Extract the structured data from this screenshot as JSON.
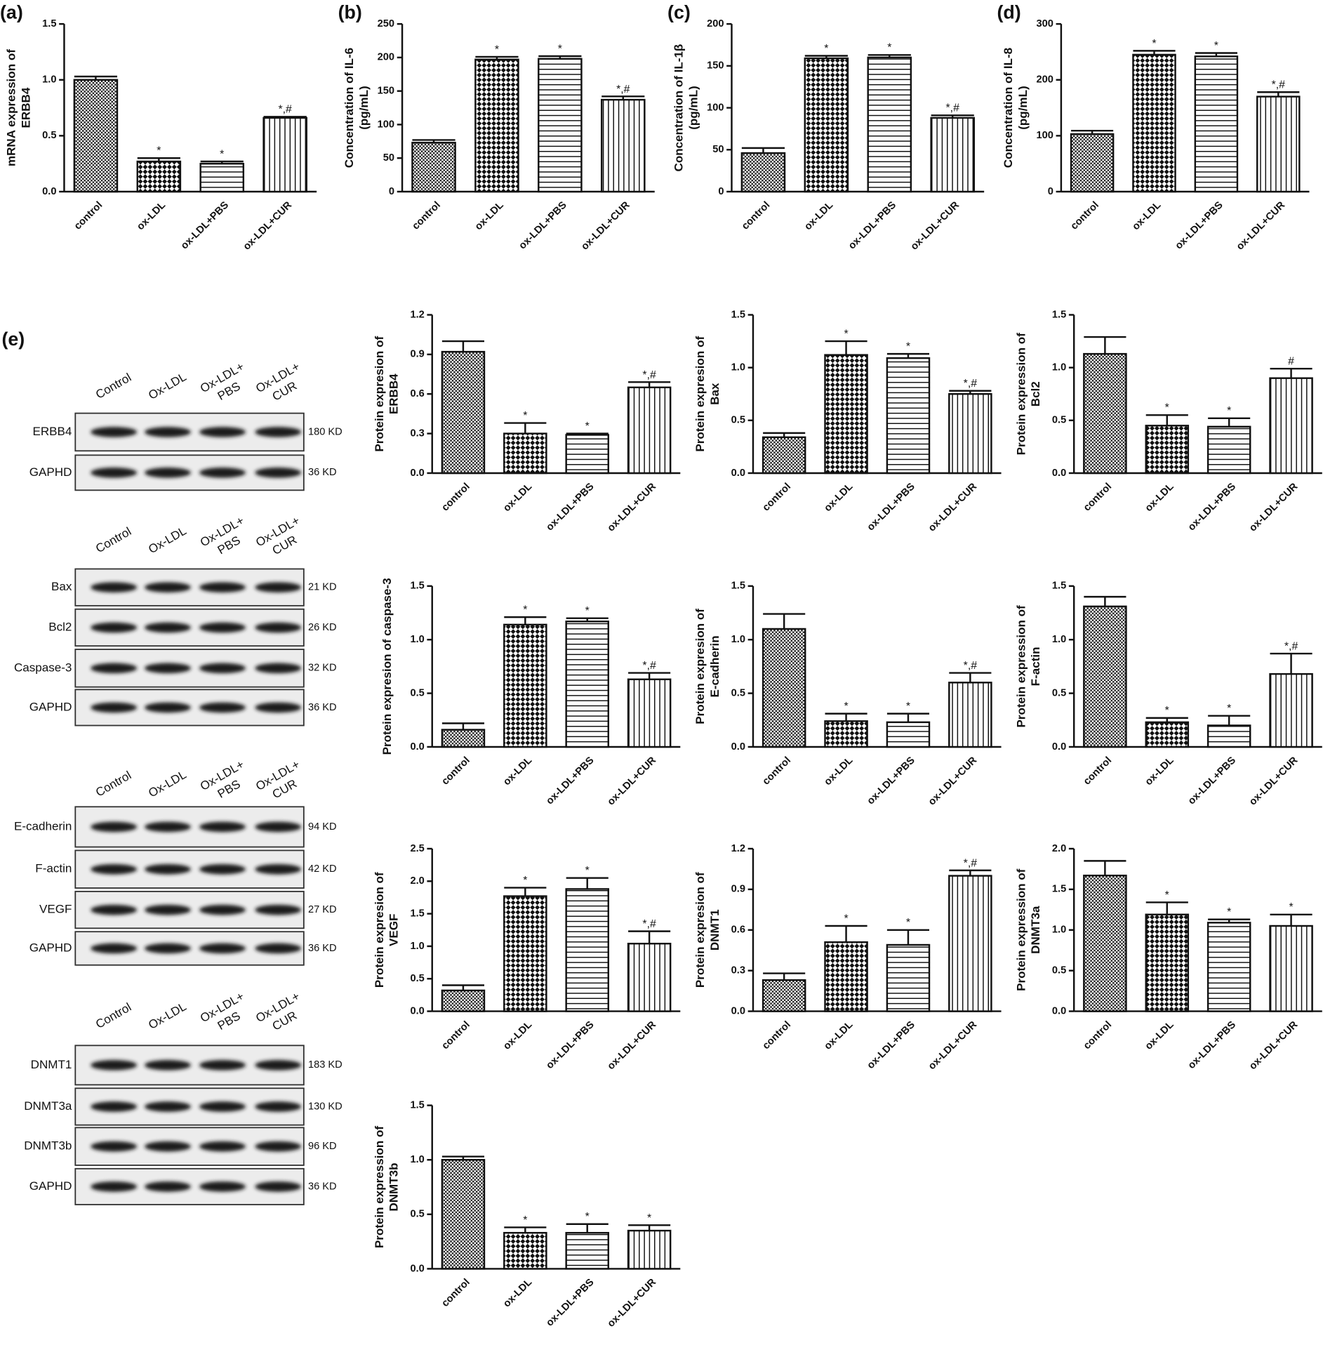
{
  "chart_data": [
    {
      "type": "bar",
      "panel": "(a)",
      "ylabel": [
        "mRNA expression of",
        "ERBB4"
      ],
      "categories": [
        "control",
        "ox-LDL",
        "ox-LDL+PBS",
        "ox-LDL+CUR"
      ],
      "values": [
        1.0,
        0.27,
        0.25,
        0.66
      ],
      "errors": [
        0.03,
        0.03,
        0.02,
        0.01
      ],
      "annotations": [
        null,
        "*",
        "*",
        "*,#"
      ],
      "patterns": [
        "fine-check",
        "check",
        "hlines",
        "vlines"
      ],
      "ylim": [
        0,
        1.5
      ],
      "yticks": [
        {
          "value": 0,
          "label": "0.0"
        },
        0.5,
        {
          "value": 1,
          "label": "1.0"
        },
        1.5
      ]
    },
    {
      "type": "bar",
      "panel": "(b)",
      "ylabel": [
        "Concentration of IL-6",
        "(pg/mL)"
      ],
      "categories": [
        "control",
        "ox-LDL",
        "ox-LDL+PBS",
        "ox-LDL+CUR"
      ],
      "values": [
        73,
        197,
        198,
        137
      ],
      "errors": [
        4,
        4,
        4,
        5
      ],
      "annotations": [
        null,
        "*",
        "*",
        "*,#"
      ],
      "patterns": [
        "fine-check",
        "check",
        "hlines",
        "vlines"
      ],
      "ylim": [
        0,
        250
      ],
      "yticks": [
        0,
        50,
        100,
        150,
        200,
        250
      ]
    },
    {
      "type": "bar",
      "panel": "(c)",
      "ylabel": [
        "Concentration of IL-1β",
        "(pg/mL)"
      ],
      "categories": [
        "control",
        "ox-LDL",
        "ox-LDL+PBS",
        "ox-LDL+CUR"
      ],
      "values": [
        46,
        159,
        160,
        88
      ],
      "errors": [
        6,
        3,
        3,
        3
      ],
      "annotations": [
        null,
        "*",
        "*",
        "*,#"
      ],
      "patterns": [
        "fine-check",
        "check",
        "hlines",
        "vlines"
      ],
      "ylim": [
        0,
        200
      ],
      "yticks": [
        0,
        50,
        100,
        150,
        200
      ]
    },
    {
      "type": "bar",
      "panel": "(d)",
      "ylabel": [
        "Concentration of IL-8",
        "(pg/mL)"
      ],
      "categories": [
        "control",
        "ox-LDL",
        "ox-LDL+PBS",
        "ox-LDL+CUR"
      ],
      "values": [
        103,
        245,
        242,
        170
      ],
      "errors": [
        6,
        7,
        6,
        8
      ],
      "annotations": [
        null,
        "*",
        "*",
        "*,#"
      ],
      "patterns": [
        "fine-check",
        "check",
        "hlines",
        "vlines"
      ],
      "ylim": [
        0,
        300
      ],
      "yticks": [
        0,
        100,
        200,
        300
      ]
    },
    {
      "type": "bar",
      "ylabel": [
        "Protein expresion of",
        "ERBB4"
      ],
      "categories": [
        "control",
        "ox-LDL",
        "ox-LDL+PBS",
        "ox-LDL+CUR"
      ],
      "values": [
        0.92,
        0.3,
        0.29,
        0.65
      ],
      "errors": [
        0.08,
        0.08,
        0.01,
        0.04
      ],
      "annotations": [
        null,
        "*",
        "*",
        "*,#"
      ],
      "patterns": [
        "fine-check",
        "check",
        "hlines",
        "vlines"
      ],
      "ylim": [
        0,
        1.2
      ],
      "yticks": [
        {
          "value": 0,
          "label": "0.0"
        },
        0.3,
        0.6,
        0.9,
        1.2
      ]
    },
    {
      "type": "bar",
      "ylabel": [
        "Protein expresion of",
        "Bax"
      ],
      "categories": [
        "control",
        "ox-LDL",
        "ox-LDL+PBS",
        "ox-LDL+CUR"
      ],
      "values": [
        0.34,
        1.12,
        1.09,
        0.75
      ],
      "errors": [
        0.04,
        0.13,
        0.04,
        0.03
      ],
      "annotations": [
        null,
        "*",
        "*",
        "*,#"
      ],
      "patterns": [
        "fine-check",
        "check",
        "hlines",
        "vlines"
      ],
      "ylim": [
        0,
        1.5
      ],
      "yticks": [
        {
          "value": 0,
          "label": "0.0"
        },
        0.5,
        {
          "value": 1,
          "label": "1.0"
        },
        1.5
      ]
    },
    {
      "type": "bar",
      "ylabel": [
        "Protein expression of",
        "Bcl2"
      ],
      "categories": [
        "control",
        "ox-LDL",
        "ox-LDL+PBS",
        "ox-LDL+CUR"
      ],
      "values": [
        1.13,
        0.45,
        0.44,
        0.9
      ],
      "errors": [
        0.16,
        0.1,
        0.08,
        0.09
      ],
      "annotations": [
        null,
        "*",
        "*",
        "#"
      ],
      "patterns": [
        "fine-check",
        "check",
        "hlines",
        "vlines"
      ],
      "ylim": [
        0,
        1.5
      ],
      "yticks": [
        {
          "value": 0,
          "label": "0.0"
        },
        0.5,
        {
          "value": 1,
          "label": "1.0"
        },
        1.5
      ]
    },
    {
      "type": "bar",
      "ylabel": [
        "Protein expresion of caspase-3"
      ],
      "categories": [
        "control",
        "ox-LDL",
        "ox-LDL+PBS",
        "ox-LDL+CUR"
      ],
      "values": [
        0.16,
        1.14,
        1.17,
        0.63
      ],
      "errors": [
        0.06,
        0.07,
        0.03,
        0.06
      ],
      "annotations": [
        null,
        "*",
        "*",
        "*,#"
      ],
      "patterns": [
        "fine-check",
        "check",
        "hlines",
        "vlines"
      ],
      "ylim": [
        0,
        1.5
      ],
      "yticks": [
        {
          "value": 0,
          "label": "0.0"
        },
        0.5,
        {
          "value": 1,
          "label": "1.0"
        },
        1.5
      ]
    },
    {
      "type": "bar",
      "ylabel": [
        "Protein expresion of",
        "E-cadherin"
      ],
      "categories": [
        "control",
        "ox-LDL",
        "ox-LDL+PBS",
        "ox-LDL+CUR"
      ],
      "values": [
        1.1,
        0.24,
        0.23,
        0.6
      ],
      "errors": [
        0.14,
        0.07,
        0.08,
        0.09
      ],
      "annotations": [
        null,
        "*",
        "*",
        "*,#"
      ],
      "patterns": [
        "fine-check",
        "check",
        "hlines",
        "vlines"
      ],
      "ylim": [
        0,
        1.5
      ],
      "yticks": [
        {
          "value": 0,
          "label": "0.0"
        },
        0.5,
        {
          "value": 1,
          "label": "1.0"
        },
        1.5
      ]
    },
    {
      "type": "bar",
      "ylabel": [
        "Protein expression of",
        "F-actin"
      ],
      "categories": [
        "control",
        "ox-LDL",
        "ox-LDL+PBS",
        "ox-LDL+CUR"
      ],
      "values": [
        1.31,
        0.23,
        0.2,
        0.68
      ],
      "errors": [
        0.09,
        0.04,
        0.09,
        0.19
      ],
      "annotations": [
        null,
        "*",
        "*",
        "*,#"
      ],
      "patterns": [
        "fine-check",
        "check",
        "hlines",
        "vlines"
      ],
      "ylim": [
        0,
        1.5
      ],
      "yticks": [
        {
          "value": 0,
          "label": "0.0"
        },
        0.5,
        {
          "value": 1,
          "label": "1.0"
        },
        1.5
      ]
    },
    {
      "type": "bar",
      "ylabel": [
        "Protein expresion of",
        "VEGF"
      ],
      "categories": [
        "control",
        "ox-LDL",
        "ox-LDL+PBS",
        "ox-LDL+CUR"
      ],
      "values": [
        0.32,
        1.77,
        1.88,
        1.04
      ],
      "errors": [
        0.08,
        0.13,
        0.17,
        0.19
      ],
      "annotations": [
        null,
        "*",
        "*",
        "*,#"
      ],
      "patterns": [
        "fine-check",
        "check",
        "hlines",
        "vlines"
      ],
      "ylim": [
        0,
        2.5
      ],
      "yticks": [
        {
          "value": 0,
          "label": "0.0"
        },
        0.5,
        {
          "value": 1,
          "label": "1.0"
        },
        1.5,
        {
          "value": 2,
          "label": "2.0"
        },
        2.5
      ]
    },
    {
      "type": "bar",
      "ylabel": [
        "Protein expresion of",
        "DNMT1"
      ],
      "categories": [
        "control",
        "ox-LDL",
        "ox-LDL+PBS",
        "ox-LDL+CUR"
      ],
      "values": [
        0.23,
        0.51,
        0.49,
        1.0
      ],
      "errors": [
        0.05,
        0.12,
        0.11,
        0.04
      ],
      "annotations": [
        null,
        "*",
        "*",
        "*,#"
      ],
      "patterns": [
        "fine-check",
        "check",
        "hlines",
        "vlines"
      ],
      "ylim": [
        0,
        1.2
      ],
      "yticks": [
        {
          "value": 0,
          "label": "0.0"
        },
        0.3,
        0.6,
        0.9,
        1.2
      ]
    },
    {
      "type": "bar",
      "ylabel": [
        "Protein expression of",
        "DNMT3a"
      ],
      "categories": [
        "control",
        "ox-LDL",
        "ox-LDL+PBS",
        "ox-LDL+CUR"
      ],
      "values": [
        1.67,
        1.19,
        1.09,
        1.05
      ],
      "errors": [
        0.18,
        0.15,
        0.04,
        0.14
      ],
      "annotations": [
        null,
        "*",
        "*",
        "*"
      ],
      "patterns": [
        "fine-check",
        "check",
        "hlines",
        "vlines"
      ],
      "ylim": [
        0,
        2
      ],
      "yticks": [
        {
          "value": 0,
          "label": "0.0"
        },
        0.5,
        {
          "value": 1,
          "label": "1.0"
        },
        1.5,
        {
          "value": 2,
          "label": "2.0"
        }
      ]
    },
    {
      "type": "bar",
      "ylabel": [
        "Protein expression of",
        "DNMT3b"
      ],
      "categories": [
        "control",
        "ox-LDL",
        "ox-LDL+PBS",
        "ox-LDL+CUR"
      ],
      "values": [
        1.0,
        0.33,
        0.33,
        0.35
      ],
      "errors": [
        0.03,
        0.05,
        0.08,
        0.05
      ],
      "annotations": [
        null,
        "*",
        "*",
        "*"
      ],
      "patterns": [
        "fine-check",
        "check",
        "hlines",
        "vlines"
      ],
      "ylim": [
        0,
        1.5
      ],
      "yticks": [
        {
          "value": 0,
          "label": "0.0"
        },
        0.5,
        {
          "value": 1,
          "label": "1.0"
        },
        1.5
      ]
    }
  ],
  "blots": {
    "panel": "(e)",
    "groups": [
      {
        "lanes": [
          [
            "Control"
          ],
          [
            "Ox-LDL"
          ],
          [
            "Ox-LDL+",
            "PBS"
          ],
          [
            "Ox-LDL+",
            "CUR"
          ]
        ],
        "rows": [
          {
            "protein": "ERBB4",
            "size": "180 KD"
          },
          {
            "protein": "GAPHD",
            "size": "36 KD"
          }
        ]
      },
      {
        "lanes": [
          [
            "Control"
          ],
          [
            "Ox-LDL"
          ],
          [
            "Ox-LDL+",
            "PBS"
          ],
          [
            "Ox-LDL+",
            "CUR"
          ]
        ],
        "rows": [
          {
            "protein": "Bax",
            "size": "21 KD"
          },
          {
            "protein": "Bcl2",
            "size": "26 KD"
          },
          {
            "protein": "Caspase-3",
            "size": "32 KD"
          },
          {
            "protein": "GAPHD",
            "size": "36 KD"
          }
        ]
      },
      {
        "lanes": [
          [
            "Control"
          ],
          [
            "Ox-LDL"
          ],
          [
            "Ox-LDL+",
            "PBS"
          ],
          [
            "Ox-LDL+",
            "CUR"
          ]
        ],
        "rows": [
          {
            "protein": "E-cadherin",
            "size": "94 KD"
          },
          {
            "protein": "F-actin",
            "size": "42 KD"
          },
          {
            "protein": "VEGF",
            "size": "27 KD"
          },
          {
            "protein": "GAPHD",
            "size": "36 KD"
          }
        ]
      },
      {
        "lanes": [
          [
            "Control"
          ],
          [
            "Ox-LDL"
          ],
          [
            "Ox-LDL+",
            "PBS"
          ],
          [
            "Ox-LDL+",
            "CUR"
          ]
        ],
        "rows": [
          {
            "protein": "DNMT1",
            "size": "183 KD"
          },
          {
            "protein": "DNMT3a",
            "size": "130 KD"
          },
          {
            "protein": "DNMT3b",
            "size": "96 KD"
          },
          {
            "protein": "GAPHD",
            "size": "36 KD"
          }
        ]
      }
    ]
  }
}
